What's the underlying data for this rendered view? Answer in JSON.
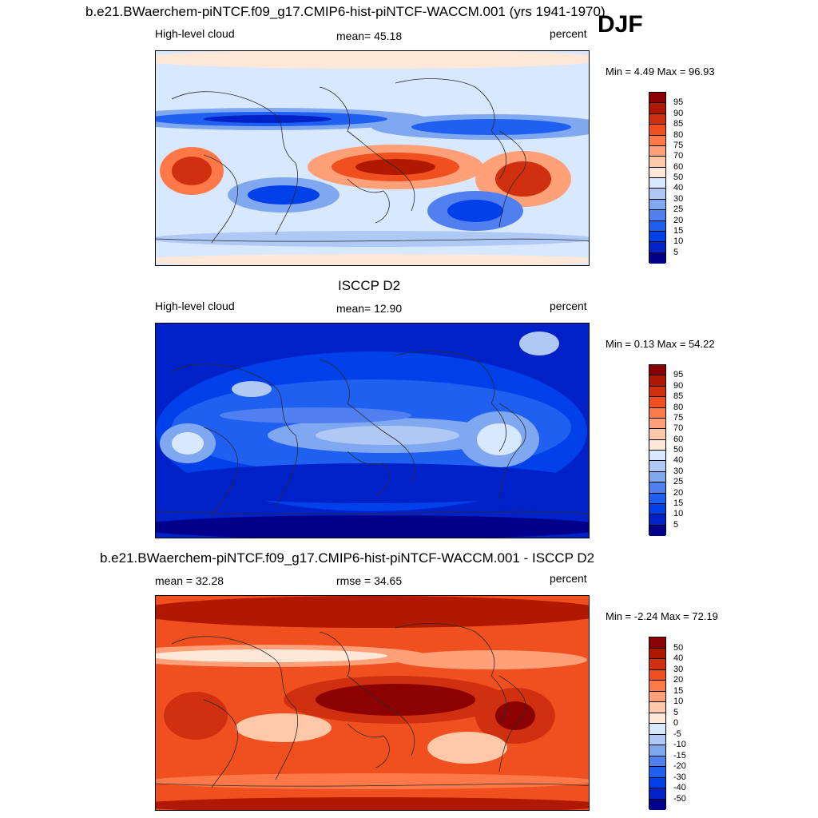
{
  "header": {
    "case_title": "b.e21.BWaerchem-piNTCF.f09_g17.CMIP6-hist-piNTCF-WACCM.001 (yrs 1941-1970)",
    "season": "DJF"
  },
  "colors": {
    "ramp": [
      "#00008b",
      "#0020c8",
      "#0040e8",
      "#2060f0",
      "#5080f0",
      "#80a8f0",
      "#b0c8f4",
      "#d8e8ff",
      "#ffe8d8",
      "#ffc8a8",
      "#ffa078",
      "#ff7848",
      "#f05020",
      "#d03010",
      "#b01800",
      "#8b0000"
    ],
    "land": "#2b2b2b"
  },
  "panels": [
    {
      "id": "model",
      "title": "",
      "left_label": "High-level cloud",
      "center_label": "mean=  45.18",
      "right_label": "percent",
      "minmax": "Min =   4.49 Max =  96.93",
      "levels": [
        "95",
        "90",
        "85",
        "80",
        "75",
        "70",
        "60",
        "50",
        "40",
        "30",
        "25",
        "20",
        "15",
        "10",
        "5"
      ]
    },
    {
      "id": "obs",
      "title": "ISCCP D2",
      "left_label": "High-level cloud",
      "center_label": "mean=  12.90",
      "right_label": "percent",
      "minmax": "Min =   0.13 Max =  54.22",
      "levels": [
        "95",
        "90",
        "85",
        "80",
        "75",
        "70",
        "60",
        "50",
        "40",
        "30",
        "25",
        "20",
        "15",
        "10",
        "5"
      ]
    },
    {
      "id": "diff",
      "title": "b.e21.BWaerchem-piNTCF.f09_g17.CMIP6-hist-piNTCF-WACCM.001 - ISCCP D2",
      "left_label": "mean =  32.28",
      "center_label": "rmse =  34.65",
      "right_label": "percent",
      "minmax": "Min =  -2.24 Max =  72.19",
      "levels": [
        "50",
        "40",
        "30",
        "20",
        "15",
        "10",
        "5",
        "0",
        "-5",
        "-10",
        "-15",
        "-20",
        "-30",
        "-40",
        "-50"
      ]
    }
  ],
  "chart_data": [
    {
      "type": "heatmap",
      "title": "High-level cloud",
      "variable": "High-level cloud",
      "units": "percent",
      "mean": 45.18,
      "min": 4.49,
      "max": 96.93,
      "levels": [
        5,
        10,
        15,
        20,
        25,
        30,
        40,
        50,
        60,
        70,
        75,
        80,
        85,
        90,
        95
      ]
    },
    {
      "type": "heatmap",
      "title": "ISCCP D2",
      "variable": "High-level cloud",
      "units": "percent",
      "mean": 12.9,
      "min": 0.13,
      "max": 54.22,
      "levels": [
        5,
        10,
        15,
        20,
        25,
        30,
        40,
        50,
        60,
        70,
        75,
        80,
        85,
        90,
        95
      ]
    },
    {
      "type": "heatmap",
      "title": "b.e21.BWaerchem-piNTCF.f09_g17.CMIP6-hist-piNTCF-WACCM.001 - ISCCP D2",
      "units": "percent",
      "mean": 32.28,
      "rmse": 34.65,
      "min": -2.24,
      "max": 72.19,
      "levels": [
        -50,
        -40,
        -30,
        -20,
        -15,
        -10,
        -5,
        0,
        5,
        10,
        15,
        20,
        30,
        40,
        50
      ]
    }
  ]
}
